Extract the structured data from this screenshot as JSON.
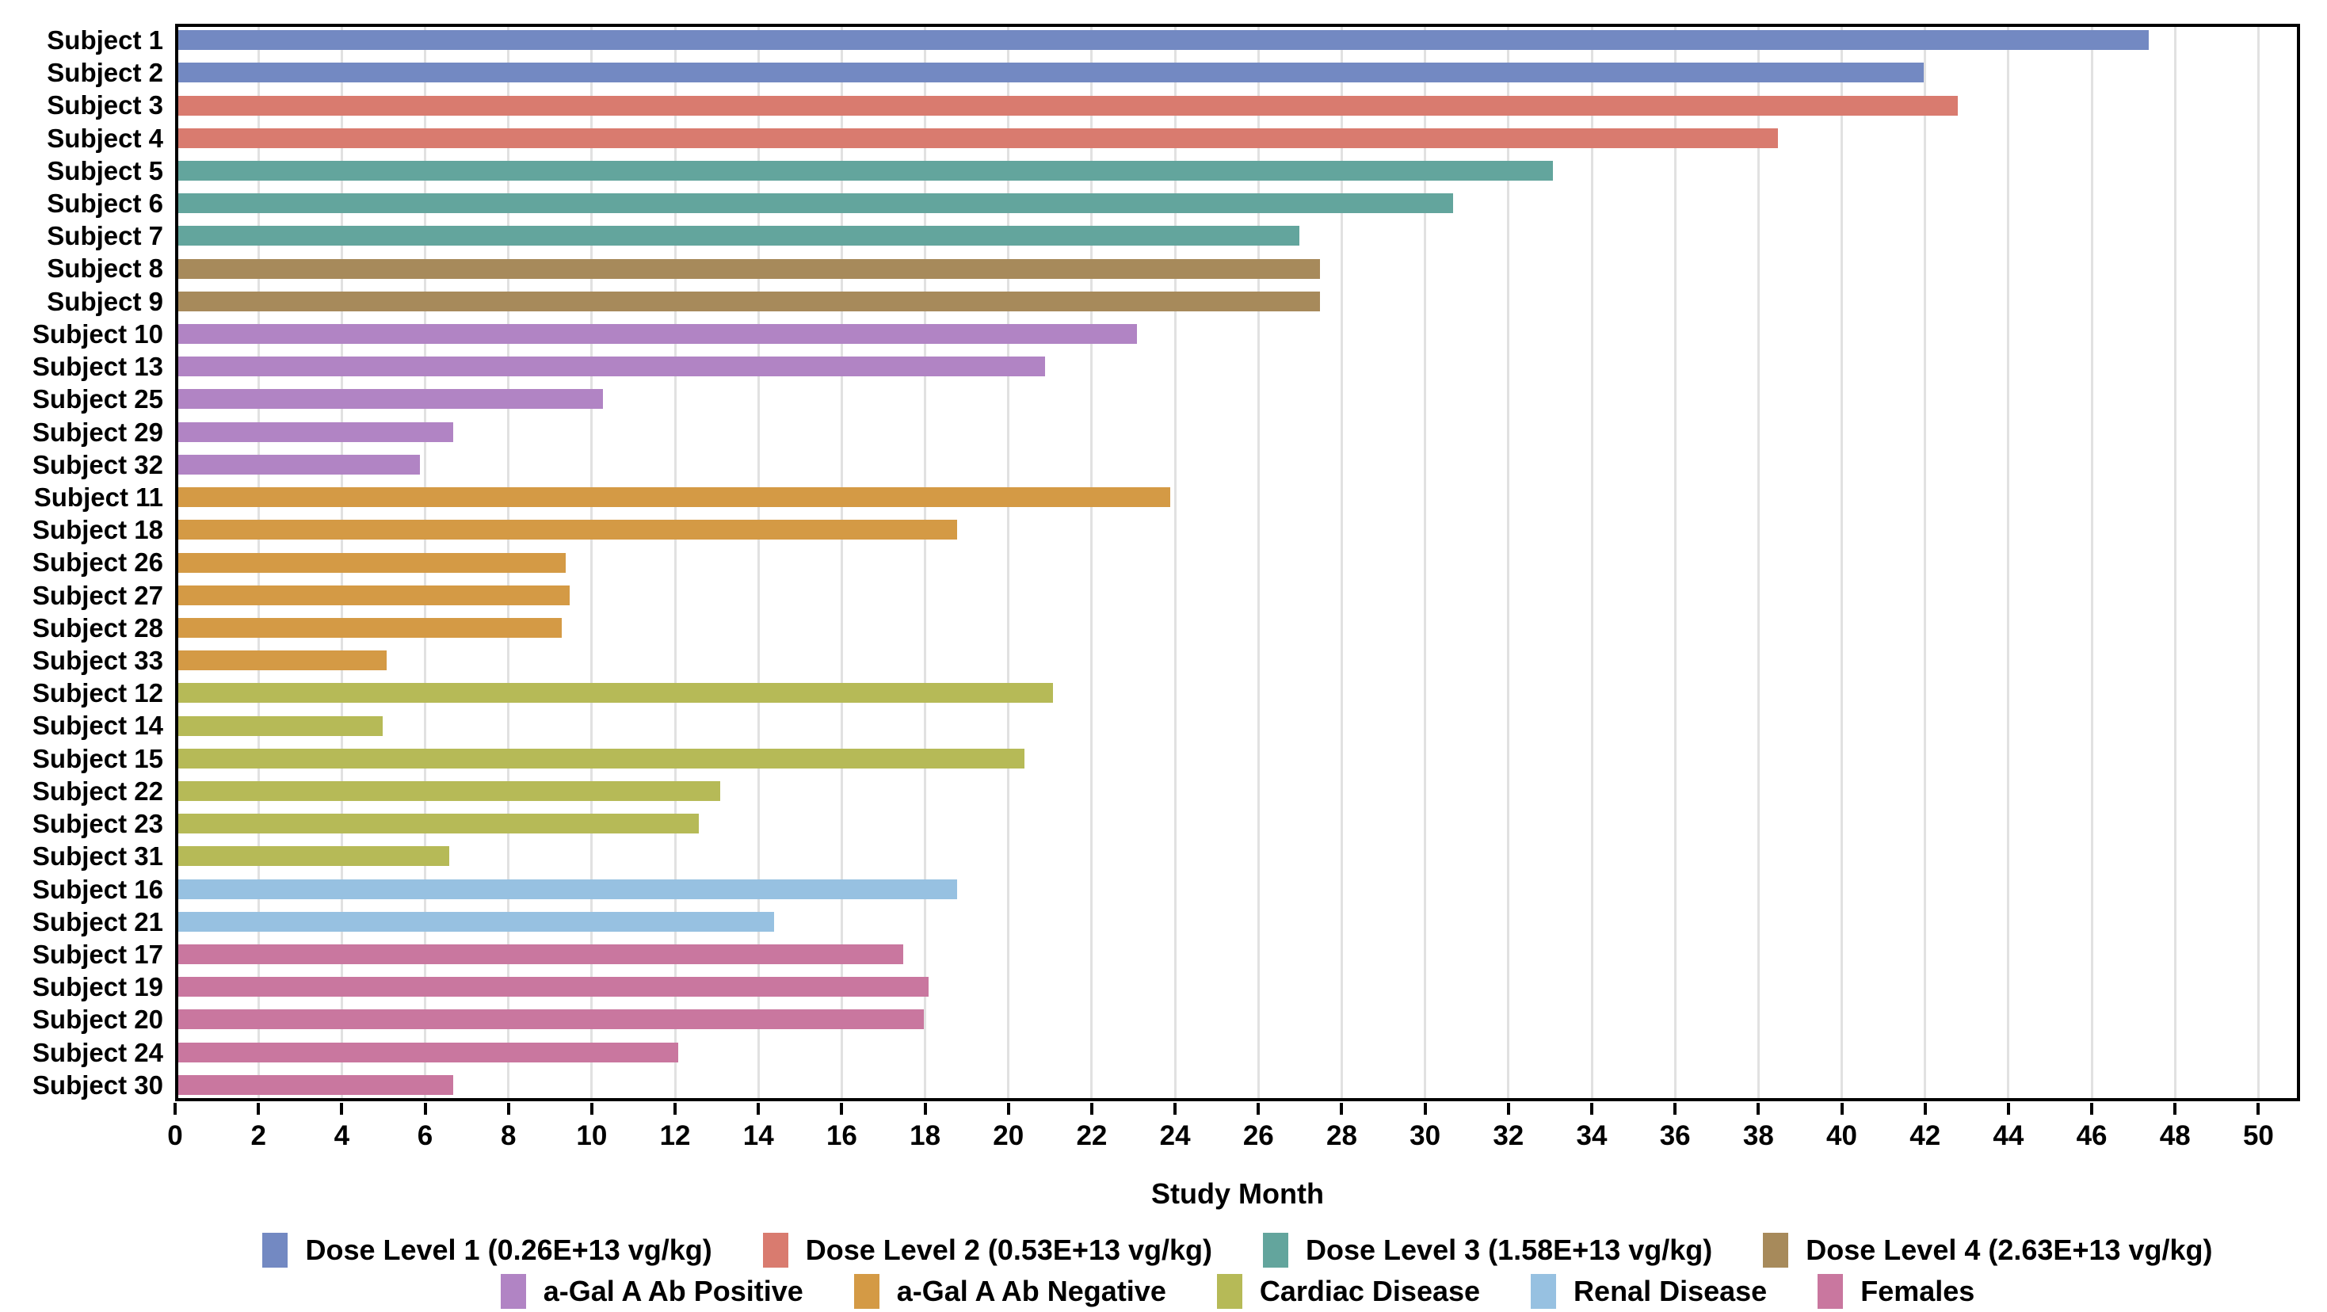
{
  "chart_data": {
    "type": "bar",
    "orientation": "horizontal",
    "title": "",
    "xlabel": "Study Month",
    "ylabel": "",
    "xlim": [
      0,
      51
    ],
    "xticks": [
      0,
      2,
      4,
      6,
      8,
      10,
      12,
      14,
      16,
      18,
      20,
      22,
      24,
      26,
      28,
      30,
      32,
      34,
      36,
      38,
      40,
      42,
      44,
      46,
      48,
      50
    ],
    "grid": "vertical gridlines at each x tick, light gray",
    "legend_position": "bottom, two centered rows",
    "groups": [
      {
        "id": "dose1",
        "label": "Dose Level 1 (0.26E+13 vg/kg)",
        "color": "#7389c2"
      },
      {
        "id": "dose2",
        "label": "Dose Level 2 (0.53E+13 vg/kg)",
        "color": "#d97b6f"
      },
      {
        "id": "dose3",
        "label": "Dose Level 3 (1.58E+13 vg/kg)",
        "color": "#63a59d"
      },
      {
        "id": "dose4",
        "label": "Dose Level 4 (2.63E+13 vg/kg)",
        "color": "#a78a5b"
      },
      {
        "id": "abpos",
        "label": "a-Gal A Ab Positive",
        "color": "#b184c4"
      },
      {
        "id": "abneg",
        "label": "a-Gal A Ab Negative",
        "color": "#d49a45"
      },
      {
        "id": "cardiac",
        "label": "Cardiac Disease",
        "color": "#b6ba57"
      },
      {
        "id": "renal",
        "label": "Renal Disease",
        "color": "#97c1e1"
      },
      {
        "id": "females",
        "label": "Females",
        "color": "#c9779f"
      }
    ],
    "legend_rows": [
      [
        "dose1",
        "dose2",
        "dose3",
        "dose4"
      ],
      [
        "abpos",
        "abneg",
        "cardiac",
        "renal",
        "females"
      ]
    ],
    "bars": [
      {
        "label": "Subject 1",
        "value": 47.3,
        "group": "dose1"
      },
      {
        "label": "Subject 2",
        "value": 41.9,
        "group": "dose1"
      },
      {
        "label": "Subject 3",
        "value": 42.7,
        "group": "dose2"
      },
      {
        "label": "Subject 4",
        "value": 38.4,
        "group": "dose2"
      },
      {
        "label": "Subject 5",
        "value": 33.0,
        "group": "dose3"
      },
      {
        "label": "Subject 6",
        "value": 30.6,
        "group": "dose3"
      },
      {
        "label": "Subject 7",
        "value": 26.9,
        "group": "dose3"
      },
      {
        "label": "Subject 8",
        "value": 27.4,
        "group": "dose4"
      },
      {
        "label": "Subject 9",
        "value": 27.4,
        "group": "dose4"
      },
      {
        "label": "Subject 10",
        "value": 23.0,
        "group": "abpos"
      },
      {
        "label": "Subject 13",
        "value": 20.8,
        "group": "abpos"
      },
      {
        "label": "Subject 25",
        "value": 10.2,
        "group": "abpos"
      },
      {
        "label": "Subject 29",
        "value": 6.6,
        "group": "abpos"
      },
      {
        "label": "Subject 32",
        "value": 5.8,
        "group": "abpos"
      },
      {
        "label": "Subject 11",
        "value": 23.8,
        "group": "abneg"
      },
      {
        "label": "Subject 18",
        "value": 18.7,
        "group": "abneg"
      },
      {
        "label": "Subject 26",
        "value": 9.3,
        "group": "abneg"
      },
      {
        "label": "Subject 27",
        "value": 9.4,
        "group": "abneg"
      },
      {
        "label": "Subject 28",
        "value": 9.2,
        "group": "abneg"
      },
      {
        "label": "Subject 33",
        "value": 5.0,
        "group": "abneg"
      },
      {
        "label": "Subject 12",
        "value": 21.0,
        "group": "cardiac"
      },
      {
        "label": "Subject 14",
        "value": 4.9,
        "group": "cardiac"
      },
      {
        "label": "Subject 15",
        "value": 20.3,
        "group": "cardiac"
      },
      {
        "label": "Subject 22",
        "value": 13.0,
        "group": "cardiac"
      },
      {
        "label": "Subject 23",
        "value": 12.5,
        "group": "cardiac"
      },
      {
        "label": "Subject 31",
        "value": 6.5,
        "group": "cardiac"
      },
      {
        "label": "Subject 16",
        "value": 18.7,
        "group": "renal"
      },
      {
        "label": "Subject 21",
        "value": 14.3,
        "group": "renal"
      },
      {
        "label": "Subject 17",
        "value": 17.4,
        "group": "females"
      },
      {
        "label": "Subject 19",
        "value": 18.0,
        "group": "females"
      },
      {
        "label": "Subject 20",
        "value": 17.9,
        "group": "females"
      },
      {
        "label": "Subject 24",
        "value": 12.0,
        "group": "females"
      },
      {
        "label": "Subject 30",
        "value": 6.6,
        "group": "females"
      }
    ]
  }
}
